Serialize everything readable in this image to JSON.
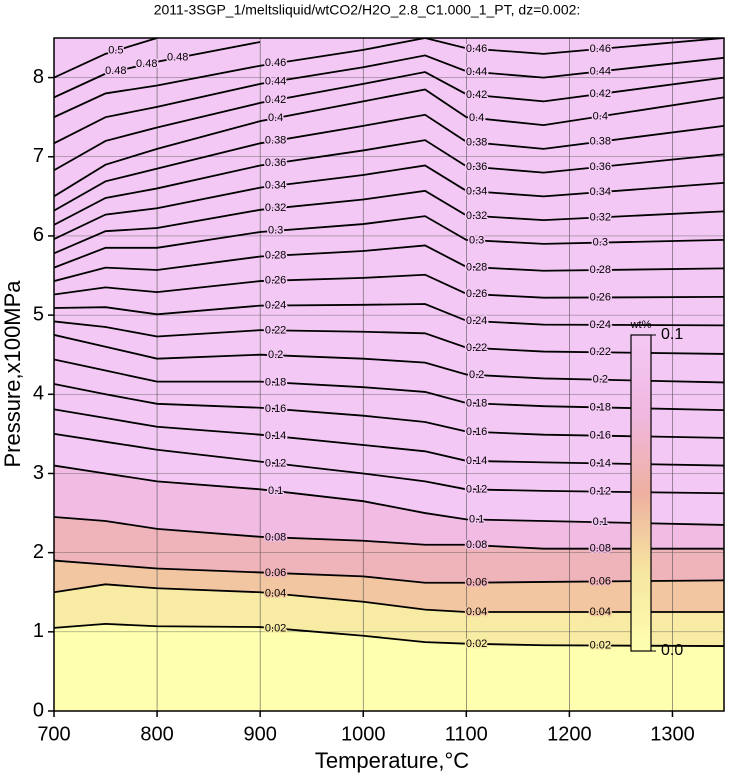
{
  "chart_data": {
    "type": "contour",
    "title": "2011-3SGP_1/meltsliquid/wtCO2/H2O_2.8_C1.000_1_PT, dz=0.002:",
    "xlabel": "Temperature,°C",
    "ylabel": "Pressure,x100MPa",
    "xlim": [
      700,
      1350
    ],
    "ylim": [
      0,
      8.5
    ],
    "xticks": [
      700,
      800,
      900,
      1000,
      1100,
      1200,
      1300
    ],
    "yticks": [
      0,
      1,
      2,
      3,
      4,
      5,
      6,
      7,
      8
    ],
    "grid": true,
    "colormap": [
      "#ffffb0",
      "#f6e6a0",
      "#eeb0a0",
      "#f0b8e0",
      "#f4c8f4"
    ],
    "colorbar": {
      "label": "wt%",
      "ticks": [
        {
          "value": 0,
          "label": "0.0"
        },
        0.1
      ]
    },
    "x": [
      700,
      750,
      800,
      900,
      1000,
      1060,
      1100,
      1175,
      1350
    ],
    "contours": [
      {
        "level": 0.02,
        "values": [
          1.05,
          1.1,
          1.07,
          1.06,
          0.95,
          0.87,
          0.85,
          0.83,
          0.82
        ]
      },
      {
        "level": 0.04,
        "values": [
          1.5,
          1.6,
          1.55,
          1.5,
          1.38,
          1.28,
          1.25,
          1.25,
          1.25
        ]
      },
      {
        "level": 0.06,
        "values": [
          1.9,
          1.85,
          1.8,
          1.75,
          1.7,
          1.62,
          1.62,
          1.63,
          1.65
        ]
      },
      {
        "level": 0.08,
        "values": [
          2.45,
          2.4,
          2.3,
          2.2,
          2.15,
          2.1,
          2.1,
          2.05,
          2.05
        ]
      },
      {
        "level": 0.1,
        "values": [
          3.1,
          3.0,
          2.9,
          2.8,
          2.65,
          2.5,
          2.42,
          2.4,
          2.35
        ]
      },
      {
        "level": 0.12,
        "values": [
          3.5,
          3.4,
          3.3,
          3.15,
          3.0,
          2.9,
          2.8,
          2.78,
          2.75
        ]
      },
      {
        "level": 0.14,
        "values": [
          3.81,
          3.7,
          3.59,
          3.49,
          3.36,
          3.28,
          3.16,
          3.14,
          3.1
        ]
      },
      {
        "level": 0.16,
        "values": [
          4.13,
          4.0,
          3.88,
          3.83,
          3.73,
          3.65,
          3.53,
          3.49,
          3.45
        ]
      },
      {
        "level": 0.18,
        "values": [
          4.44,
          4.3,
          4.16,
          4.16,
          4.09,
          4.03,
          3.89,
          3.85,
          3.8
        ]
      },
      {
        "level": 0.2,
        "values": [
          4.75,
          4.6,
          4.45,
          4.5,
          4.45,
          4.4,
          4.25,
          4.2,
          4.15
        ]
      },
      {
        "level": 0.22,
        "values": [
          4.92,
          4.85,
          4.73,
          4.81,
          4.79,
          4.77,
          4.59,
          4.54,
          4.51
        ]
      },
      {
        "level": 0.24,
        "values": [
          5.09,
          5.1,
          5.01,
          5.12,
          5.13,
          5.14,
          4.93,
          4.88,
          4.87
        ]
      },
      {
        "level": 0.26,
        "values": [
          5.26,
          5.35,
          5.29,
          5.43,
          5.47,
          5.51,
          5.27,
          5.22,
          5.23
        ]
      },
      {
        "level": 0.28,
        "values": [
          5.43,
          5.6,
          5.57,
          5.74,
          5.81,
          5.88,
          5.61,
          5.56,
          5.59
        ]
      },
      {
        "level": 0.3,
        "values": [
          5.6,
          5.85,
          5.85,
          6.05,
          6.15,
          6.25,
          5.95,
          5.9,
          5.95
        ]
      },
      {
        "level": 0.32,
        "values": [
          5.78,
          6.06,
          6.1,
          6.33,
          6.46,
          6.57,
          6.26,
          6.2,
          6.31
        ]
      },
      {
        "level": 0.34,
        "values": [
          5.96,
          6.27,
          6.35,
          6.61,
          6.77,
          6.89,
          6.57,
          6.5,
          6.67
        ]
      },
      {
        "level": 0.36,
        "values": [
          6.14,
          6.48,
          6.6,
          6.89,
          7.08,
          7.21,
          6.88,
          6.8,
          7.03
        ]
      },
      {
        "level": 0.38,
        "values": [
          6.32,
          6.69,
          6.85,
          7.17,
          7.39,
          7.53,
          7.19,
          7.1,
          7.39
        ]
      },
      {
        "level": 0.4,
        "values": [
          6.5,
          6.9,
          7.1,
          7.45,
          7.7,
          7.85,
          7.5,
          7.4,
          7.75
        ]
      },
      {
        "level": 0.42,
        "values": [
          6.83,
          7.2,
          7.37,
          7.68,
          7.92,
          8.07,
          7.79,
          7.7,
          8.0
        ]
      },
      {
        "level": 0.44,
        "values": [
          7.17,
          7.5,
          7.63,
          7.92,
          8.13,
          8.28,
          8.08,
          8.0,
          8.25
        ]
      },
      {
        "level": 0.46,
        "values": [
          7.5,
          7.8,
          7.9,
          8.15,
          8.35,
          8.5,
          8.37,
          8.3,
          8.5
        ]
      },
      {
        "level": 0.48,
        "values": [
          7.75,
          8.05,
          8.2,
          8.45,
          null,
          null,
          null,
          null,
          null
        ]
      },
      {
        "level": 0.5,
        "values": [
          8.0,
          8.3,
          8.5,
          null,
          null,
          null,
          null,
          null,
          null
        ]
      }
    ]
  }
}
